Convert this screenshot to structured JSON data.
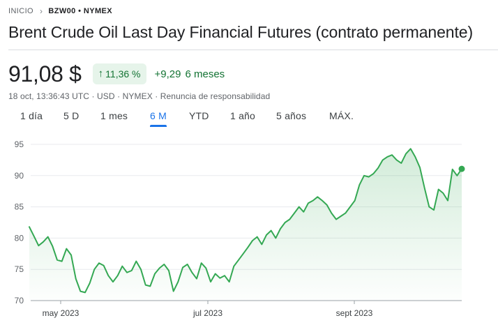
{
  "breadcrumb": {
    "root": "INICIO",
    "current": "BZW00 • NYMEX"
  },
  "title": "Brent Crude Oil Last Day Financial Futures (contrato permanente)",
  "quote": {
    "price": "91,08 $",
    "change_pct": "11,36 %",
    "change_abs": "+9,29",
    "period": "6 meses",
    "meta": "18 oct, 13:36:43 UTC · USD · NYMEX · Renuncia de responsabilidad"
  },
  "tabs": [
    "1 día",
    "5 D",
    "1 mes",
    "6 M",
    "YTD",
    "1 año",
    "5 años",
    "MÁX."
  ],
  "active_tab": "6 M",
  "colors": {
    "accent": "#1a73e8",
    "positive": "#137333",
    "line": "#34a853",
    "badge_bg": "#e6f4ea"
  },
  "chart_data": {
    "type": "area",
    "title": "",
    "xlabel": "",
    "ylabel": "",
    "ylim": [
      70,
      95
    ],
    "y_ticks": [
      "95",
      "90",
      "85",
      "80",
      "75",
      "70"
    ],
    "x_ticks": [
      "may 2023",
      "jul 2023",
      "sept 2023"
    ],
    "grid": true,
    "series": [
      {
        "values": [
          81.8,
          80.3,
          78.8,
          79.4,
          80.2,
          78.7,
          76.5,
          76.3,
          78.3,
          77.3,
          73.5,
          71.5,
          71.3,
          72.8,
          75.0,
          76.0,
          75.6,
          74.0,
          73.0,
          74.0,
          75.5,
          74.5,
          74.8,
          76.3,
          75.0,
          72.5,
          72.3,
          74.3,
          75.2,
          75.8,
          74.8,
          71.5,
          73.0,
          75.3,
          75.8,
          74.5,
          73.5,
          76.0,
          75.2,
          73.0,
          74.3,
          73.6,
          74.0,
          73.0,
          75.5,
          76.5,
          77.5,
          78.5,
          79.6,
          80.2,
          79.0,
          80.5,
          81.2,
          80.0,
          81.5,
          82.5,
          83.0,
          84.0,
          85.0,
          84.2,
          85.6,
          86.0,
          86.6,
          86.0,
          85.3,
          84.0,
          83.0,
          83.5,
          84.0,
          85.0,
          86.0,
          88.5,
          90.0,
          89.8,
          90.3,
          91.2,
          92.5,
          93.0,
          93.3,
          92.5,
          92.0,
          93.5,
          94.3,
          93.0,
          91.3,
          88.0,
          85.0,
          84.5,
          87.8,
          87.2,
          86.0,
          91.0,
          90.0,
          91.08
        ]
      }
    ]
  }
}
